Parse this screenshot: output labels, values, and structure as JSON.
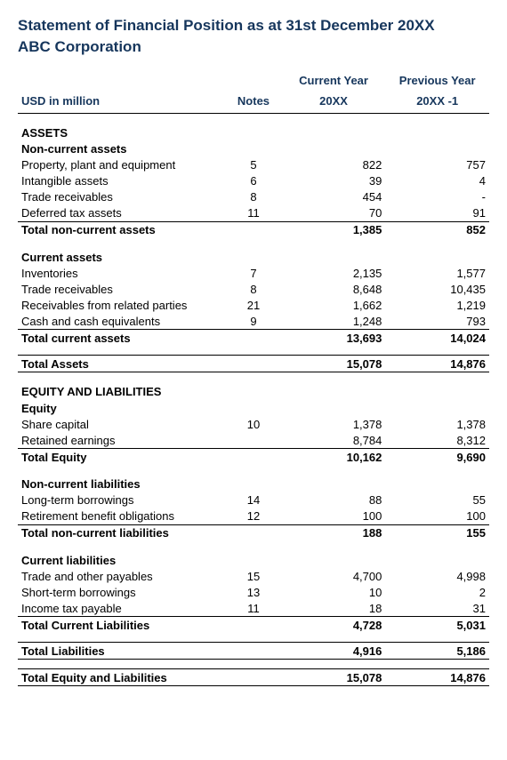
{
  "title": "Statement of Financial Position as at 31st December 20XX",
  "company": "ABC Corporation",
  "headers": {
    "unit": "USD in million",
    "notes": "Notes",
    "cy_top": "Current Year",
    "cy_bot": "20XX",
    "py_top": "Previous Year",
    "py_bot": "20XX -1"
  },
  "sections": {
    "assets": "ASSETS",
    "nca": "Non-current assets",
    "ca": "Current assets",
    "el": "EQUITY AND LIABILITIES",
    "eq": "Equity",
    "ncl": "Non-current liabilities",
    "cl": "Current liabilities"
  },
  "rows": {
    "ppe": {
      "label": "Property, plant and equipment",
      "note": "5",
      "cy": "822",
      "py": "757"
    },
    "intan": {
      "label": "Intangible assets",
      "note": "6",
      "cy": "39",
      "py": "4"
    },
    "tr1": {
      "label": "Trade receivables",
      "note": "8",
      "cy": "454",
      "py": "-"
    },
    "dta": {
      "label": "Deferred tax assets",
      "note": "11",
      "cy": "70",
      "py": "91"
    },
    "tnca": {
      "label": "Total non-current assets",
      "note": "",
      "cy": "1,385",
      "py": "852"
    },
    "inv": {
      "label": "Inventories",
      "note": "7",
      "cy": "2,135",
      "py": "1,577"
    },
    "tr2": {
      "label": "Trade receivables",
      "note": "8",
      "cy": "8,648",
      "py": "10,435"
    },
    "rrp": {
      "label": "Receivables from related parties",
      "note": "21",
      "cy": "1,662",
      "py": "1,219"
    },
    "cash": {
      "label": "Cash and cash equivalents",
      "note": "9",
      "cy": "1,248",
      "py": "793"
    },
    "tca": {
      "label": "Total current assets",
      "note": "",
      "cy": "13,693",
      "py": "14,024"
    },
    "ta": {
      "label": "Total Assets",
      "note": "",
      "cy": "15,078",
      "py": "14,876"
    },
    "sc": {
      "label": "Share capital",
      "note": "10",
      "cy": "1,378",
      "py": "1,378"
    },
    "re": {
      "label": "Retained earnings",
      "note": "",
      "cy": "8,784",
      "py": "8,312"
    },
    "te": {
      "label": "Total Equity",
      "note": "",
      "cy": "10,162",
      "py": "9,690"
    },
    "ltb": {
      "label": "Long-term borrowings",
      "note": "14",
      "cy": "88",
      "py": "55"
    },
    "rbo": {
      "label": "Retirement benefit obligations",
      "note": "12",
      "cy": "100",
      "py": "100"
    },
    "tncl": {
      "label": "Total non-current liabilities",
      "note": "",
      "cy": "188",
      "py": "155"
    },
    "tap": {
      "label": "Trade and other payables",
      "note": "15",
      "cy": "4,700",
      "py": "4,998"
    },
    "stb": {
      "label": "Short-term borrowings",
      "note": "13",
      "cy": "10",
      "py": "2"
    },
    "itp": {
      "label": "Income tax payable",
      "note": "11",
      "cy": "18",
      "py": "31"
    },
    "tcl": {
      "label": "Total Current Liabilities",
      "note": "",
      "cy": "4,728",
      "py": "5,031"
    },
    "tl": {
      "label": "Total Liabilities",
      "note": "",
      "cy": "4,916",
      "py": "5,186"
    },
    "tel": {
      "label": "Total Equity and Liabilities",
      "note": "",
      "cy": "15,078",
      "py": "14,876"
    }
  }
}
